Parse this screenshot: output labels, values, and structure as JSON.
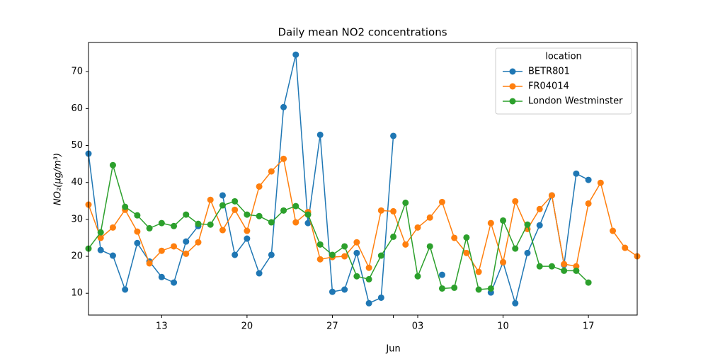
{
  "chart_data": {
    "type": "line",
    "title": "Daily mean NO2 concentrations",
    "ylabel": "NO₂(µg/m³)",
    "x": [
      0,
      1,
      2,
      3,
      4,
      5,
      6,
      7,
      8,
      9,
      10,
      11,
      12,
      13,
      14,
      15,
      16,
      17,
      18,
      19,
      20,
      21,
      22,
      23,
      24,
      25,
      26,
      27,
      28,
      29,
      30,
      31,
      32,
      33,
      34,
      35,
      36,
      37,
      38,
      39,
      40,
      41,
      42,
      43,
      44,
      45
    ],
    "xlim": [
      0,
      45
    ],
    "xticks": [
      {
        "value": 6,
        "label": "13"
      },
      {
        "value": 13,
        "label": "20"
      },
      {
        "value": 20,
        "label": "27"
      },
      {
        "value": 27,
        "label": "03"
      },
      {
        "value": 34,
        "label": "10"
      },
      {
        "value": 41,
        "label": "17"
      }
    ],
    "xticks_month": [
      {
        "value": 25,
        "label": "Jun"
      }
    ],
    "ylim": [
      4.1,
      77.9
    ],
    "yticks": [
      10,
      20,
      30,
      40,
      50,
      60,
      70
    ],
    "legend_title": "location",
    "legend": "upper right",
    "series": [
      {
        "name": "BETR801",
        "color": "#1f77b4",
        "values": [
          47.8,
          21.7,
          20.2,
          11.0,
          23.6,
          18.6,
          14.4,
          12.9,
          24.0,
          28.2,
          null,
          36.5,
          20.4,
          24.8,
          15.4,
          20.4,
          60.4,
          74.6,
          29.0,
          52.9,
          10.4,
          11.0,
          20.9,
          7.3,
          8.8,
          52.6,
          null,
          null,
          null,
          15.0,
          null,
          null,
          null,
          10.2,
          18.4,
          7.3,
          20.9,
          28.4,
          36.5,
          17.7,
          42.4,
          40.7,
          null,
          null,
          null,
          null
        ]
      },
      {
        "name": "FR04014",
        "color": "#ff7f0e",
        "values": [
          34.0,
          25.0,
          27.8,
          32.6,
          26.7,
          18.1,
          21.5,
          22.7,
          20.7,
          23.8,
          35.3,
          27.1,
          32.6,
          26.9,
          38.9,
          43.0,
          46.4,
          29.2,
          32.0,
          19.2,
          19.8,
          20.0,
          23.8,
          16.9,
          32.4,
          32.2,
          23.2,
          27.8,
          30.5,
          34.7,
          25.0,
          20.9,
          15.8,
          29.0,
          18.4,
          34.9,
          27.4,
          32.8,
          36.5,
          17.9,
          17.3,
          34.3,
          39.9,
          26.9,
          22.3,
          20.0
        ]
      },
      {
        "name": "London Westminster",
        "color": "#2ca02c",
        "values": [
          22.1,
          26.5,
          44.7,
          33.4,
          31.1,
          27.6,
          29.0,
          28.2,
          31.3,
          28.8,
          28.6,
          33.8,
          34.9,
          31.3,
          30.9,
          29.2,
          32.4,
          33.6,
          31.3,
          23.2,
          20.4,
          22.7,
          14.6,
          13.8,
          20.2,
          25.3,
          34.5,
          14.6,
          22.7,
          11.3,
          11.5,
          25.1,
          11.0,
          11.3,
          29.7,
          22.1,
          28.6,
          17.3,
          17.3,
          16.1,
          16.1,
          12.9,
          null,
          null,
          null,
          null
        ]
      }
    ]
  }
}
